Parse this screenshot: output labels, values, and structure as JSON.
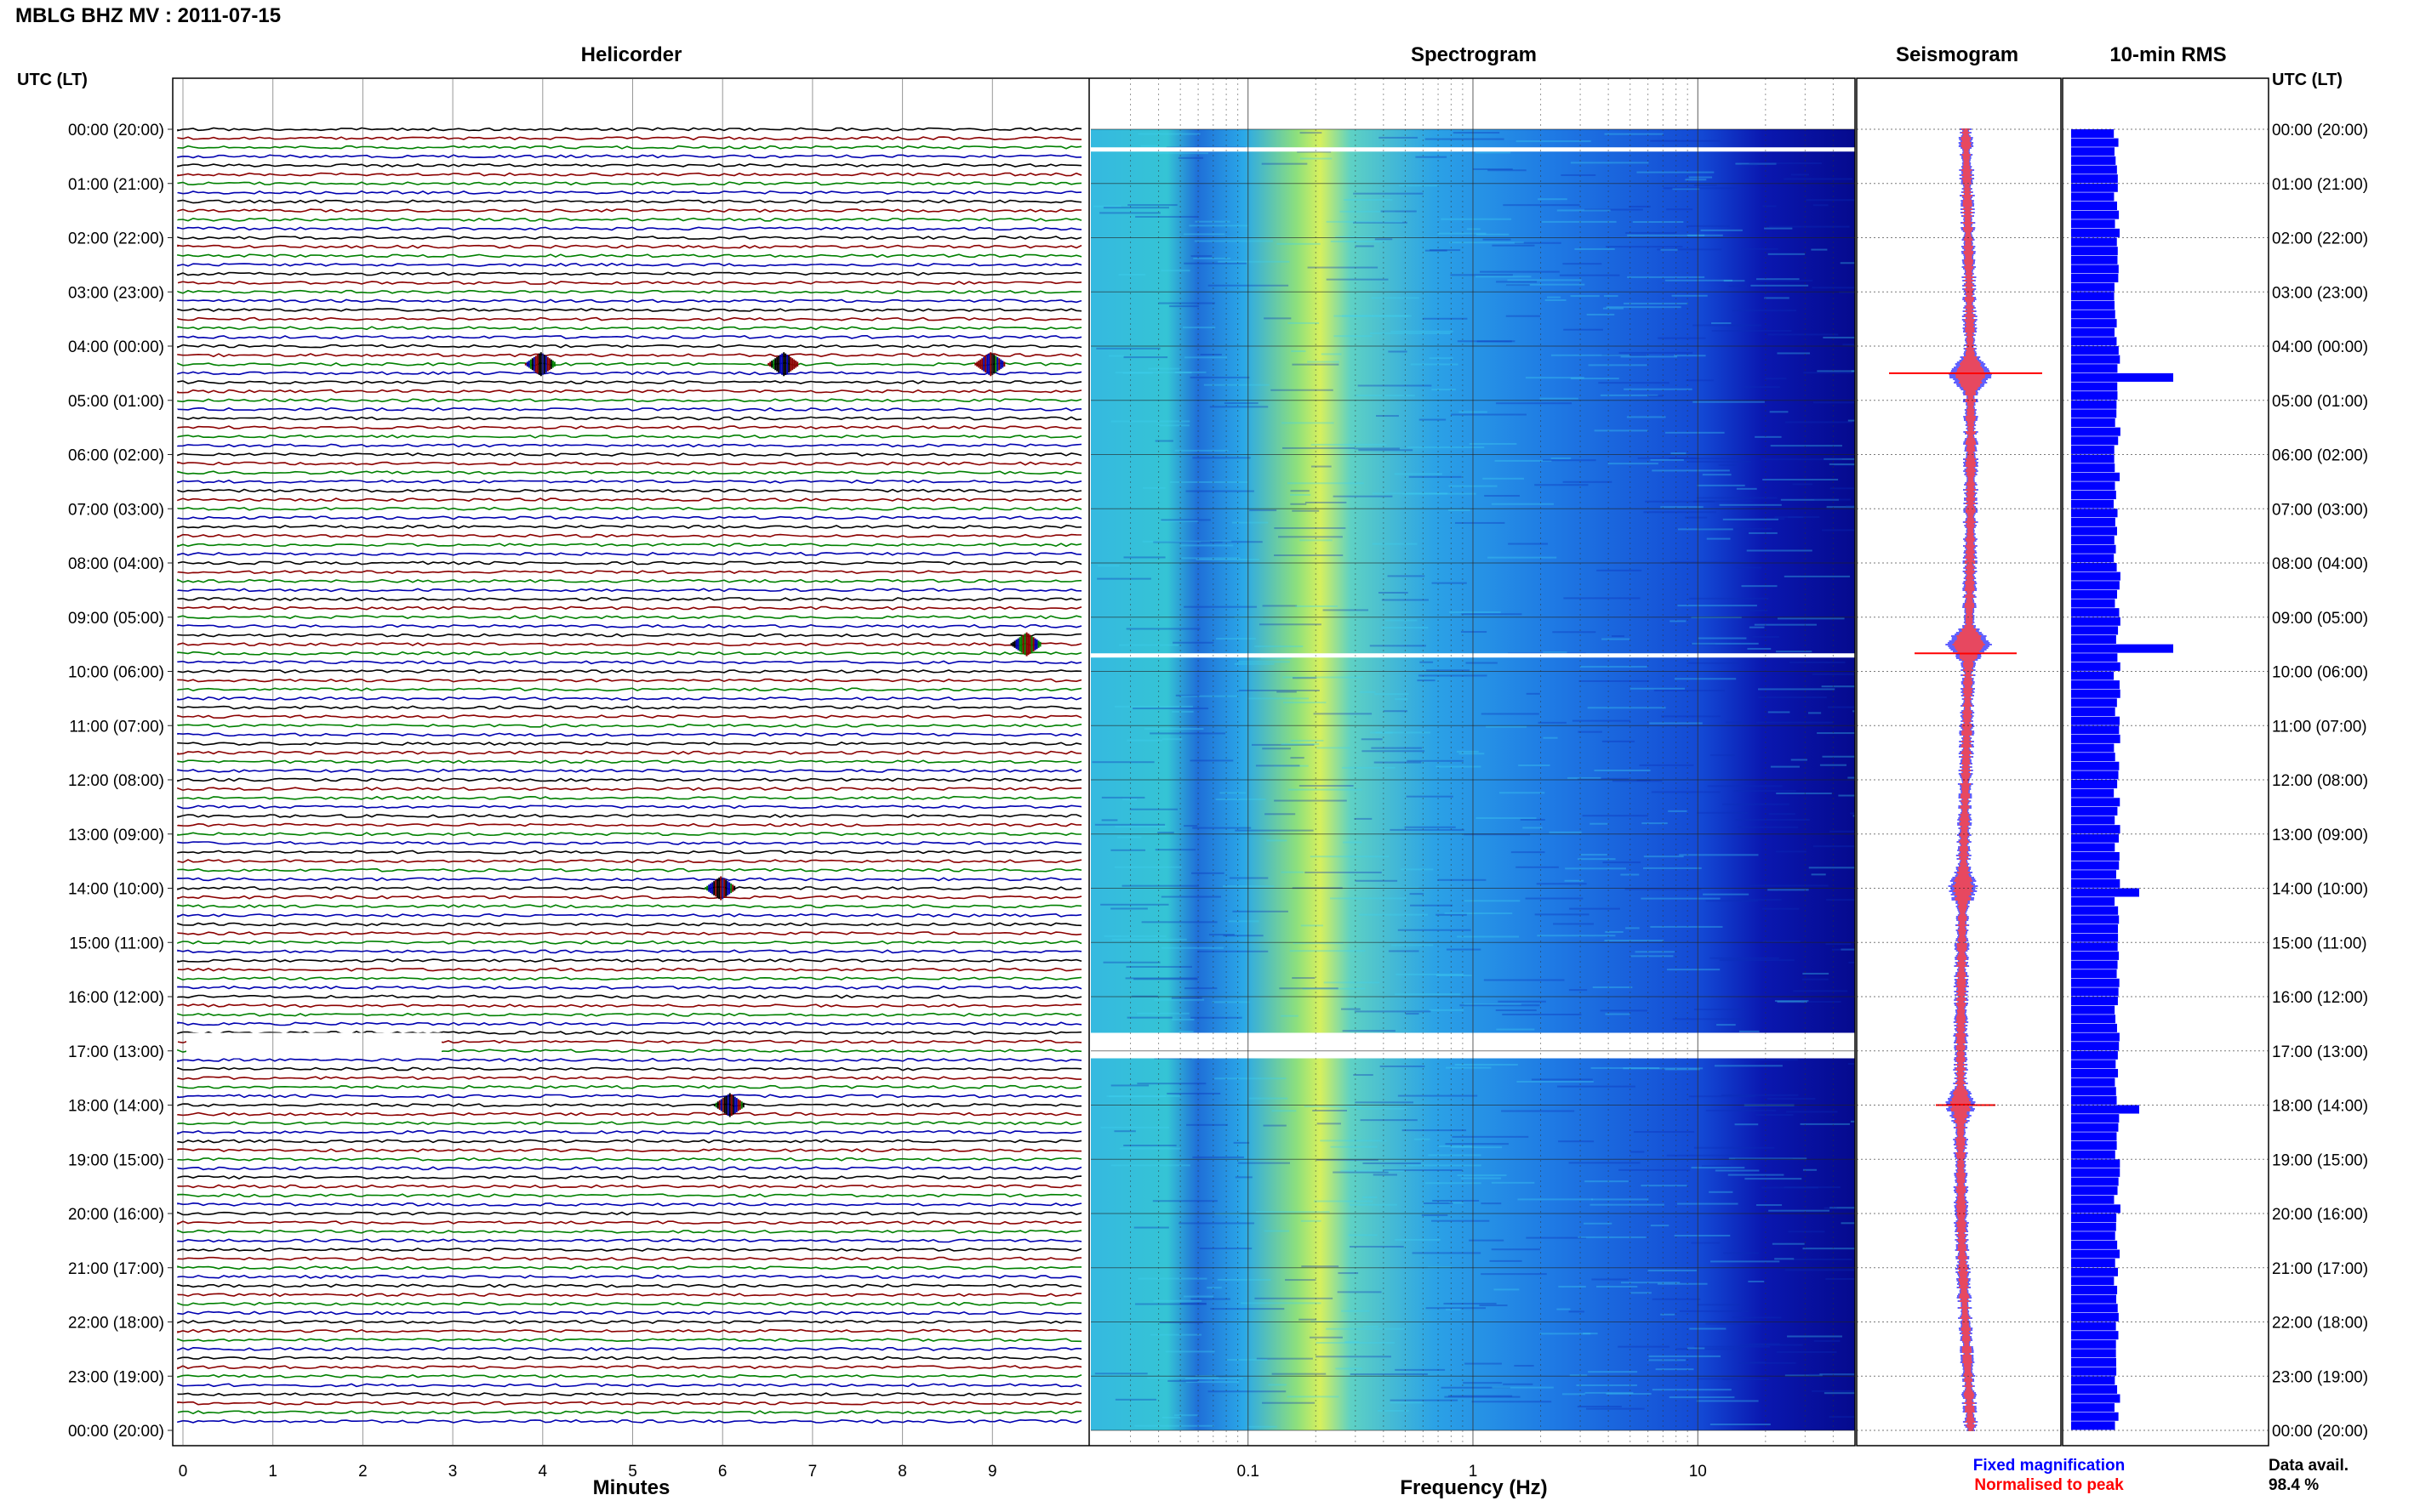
{
  "title": "MBLG BHZ MV : 2011-07-15",
  "panels": {
    "helicorder": "Helicorder",
    "spectrogram": "Spectrogram",
    "seismogram": "Seismogram",
    "rms": "10-min RMS"
  },
  "axis_header": "UTC (LT)",
  "time_labels": [
    "00:00 (20:00)",
    "01:00 (21:00)",
    "02:00 (22:00)",
    "03:00 (23:00)",
    "04:00 (00:00)",
    "05:00 (01:00)",
    "06:00 (02:00)",
    "07:00 (03:00)",
    "08:00 (04:00)",
    "09:00 (05:00)",
    "10:00 (06:00)",
    "11:00 (07:00)",
    "12:00 (08:00)",
    "13:00 (09:00)",
    "14:00 (10:00)",
    "15:00 (11:00)",
    "16:00 (12:00)",
    "17:00 (13:00)",
    "18:00 (14:00)",
    "19:00 (15:00)",
    "20:00 (16:00)",
    "21:00 (17:00)",
    "22:00 (18:00)",
    "23:00 (19:00)",
    "00:00 (20:00)"
  ],
  "helicorder_xlabel": "Minutes",
  "helicorder_ticks": [
    "0",
    "1",
    "2",
    "3",
    "4",
    "5",
    "6",
    "7",
    "8",
    "9"
  ],
  "spectrogram_xlabel": "Frequency (Hz)",
  "spectrogram_ticks": [
    "0.1",
    "1",
    "10"
  ],
  "legend": {
    "fixed": "Fixed magnification",
    "normalised": "Normalised to peak",
    "fixed_color": "#0000ff",
    "normalised_color": "#ff0000"
  },
  "data_avail": {
    "label": "Data avail.",
    "value": "98.4 %"
  },
  "colors": {
    "trace_cycle": [
      "#000000",
      "#8b0000",
      "#008000",
      "#0000b0"
    ],
    "rms_bar": "#0000ff",
    "spectrogram_low": "#00007f",
    "spectrogram_high": "#ffff00"
  },
  "chart_data": {
    "type": "heatmap",
    "title": "MBLG BHZ MV : 2011-07-15",
    "hours": 24,
    "minutes_per_line": 10,
    "frequency_range_hz": [
      0.02,
      50
    ],
    "frequency_scale": "log",
    "spectral_peak_hz": 0.25,
    "gaps_utc": [
      "00:20",
      "09:40",
      "16:40"
    ],
    "rms_10min_peaks": [
      {
        "time_utc": "04:30",
        "level": "high"
      },
      {
        "time_utc": "09:30",
        "level": "high"
      },
      {
        "time_utc": "14:00",
        "level": "medium"
      },
      {
        "time_utc": "18:00",
        "level": "medium"
      }
    ],
    "events_helicorder": [
      {
        "time_utc": "04:20",
        "minute": 4.0
      },
      {
        "time_utc": "04:20",
        "minute": 6.7
      },
      {
        "time_utc": "04:20",
        "minute": 9.0
      },
      {
        "time_utc": "09:30",
        "minute": 9.4
      },
      {
        "time_utc": "14:00",
        "minute": 6.0
      },
      {
        "time_utc": "18:00",
        "minute": 6.1
      }
    ]
  }
}
